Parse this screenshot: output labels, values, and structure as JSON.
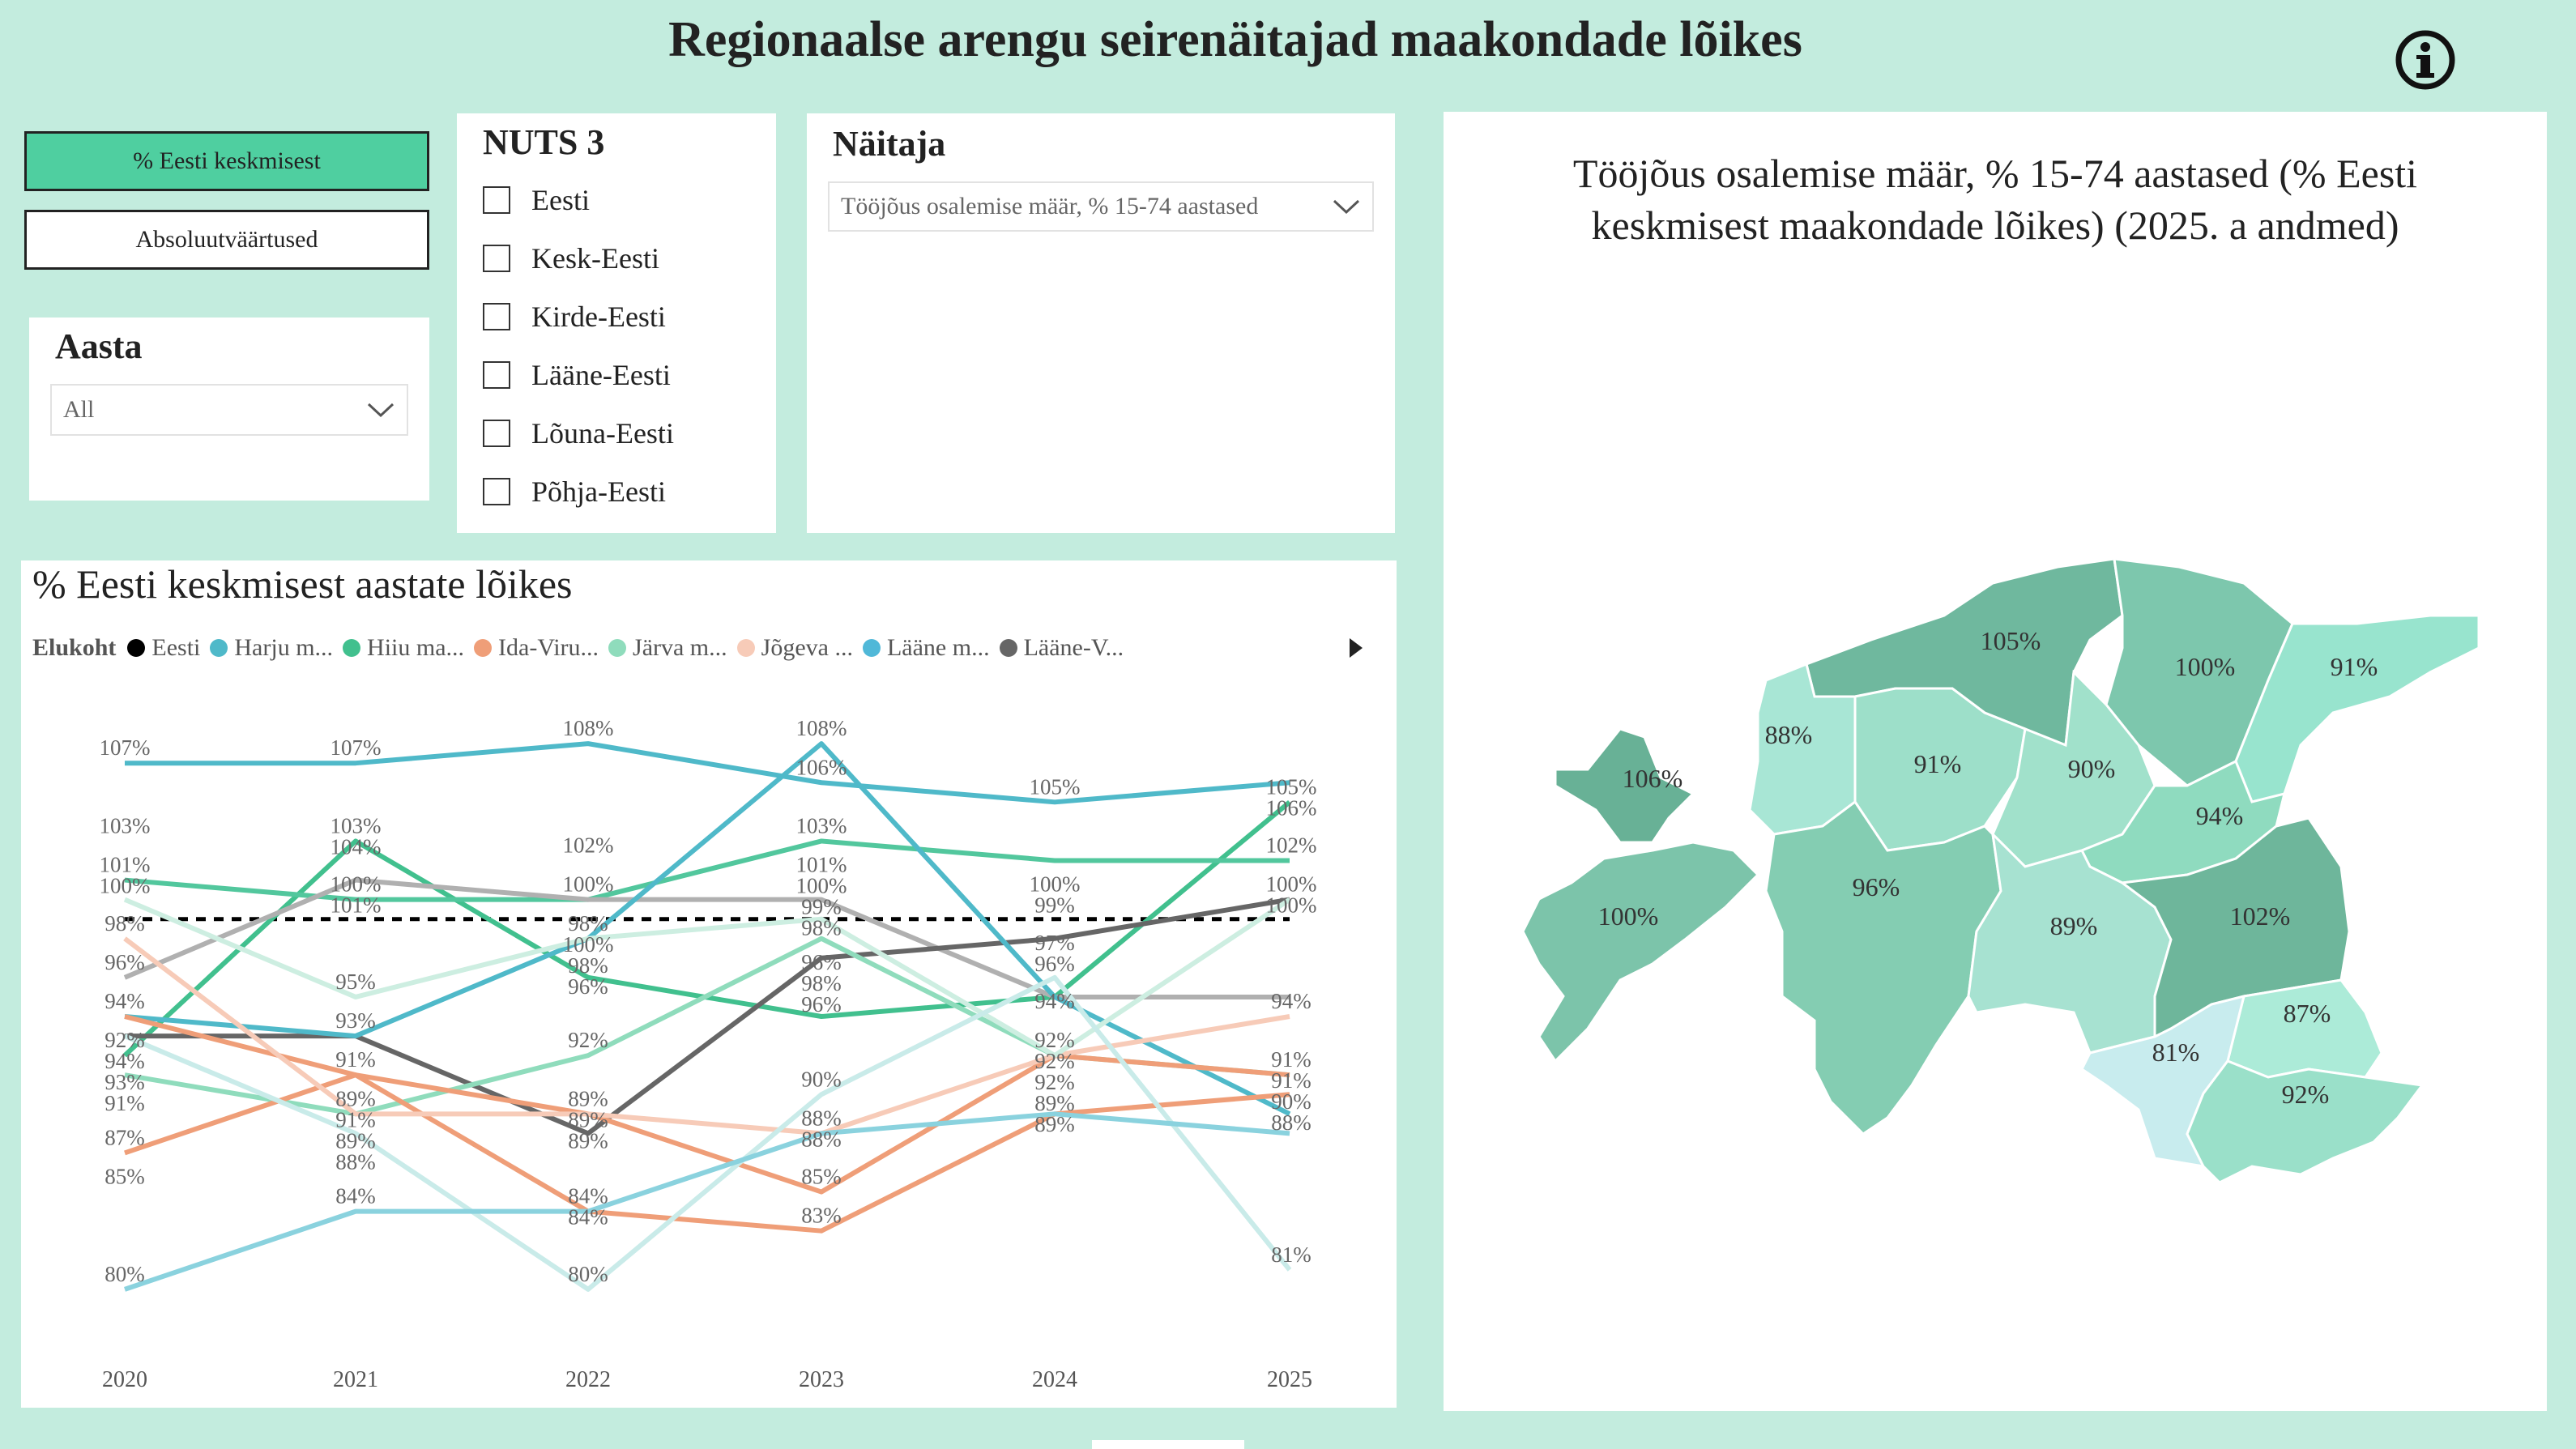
{
  "header": {
    "title": "Regionaalse arengu seirenäitajad maakondade lõikes",
    "info_icon": "info-circle-icon"
  },
  "mode_buttons": [
    {
      "label": "% Eesti keskmisest",
      "active": true
    },
    {
      "label": "Absoluutväärtused",
      "active": false
    }
  ],
  "year_filter": {
    "label": "Aasta",
    "value": "All"
  },
  "nuts3": {
    "label": "NUTS 3",
    "items": [
      "Eesti",
      "Kesk-Eesti",
      "Kirde-Eesti",
      "Lääne-Eesti",
      "Lõuna-Eesti",
      "Põhja-Eesti"
    ]
  },
  "indicator": {
    "label": "Näitaja",
    "value": "Tööjõus osalemise määr, % 15-74 aastased"
  },
  "line_chart": {
    "title": "% Eesti keskmisest aastate lõikes",
    "legend_title": "Elukoht",
    "legend": [
      {
        "label": "Eesti",
        "color": "#000000"
      },
      {
        "label": "Harju m...",
        "color": "#4fb9c9"
      },
      {
        "label": "Hiiu ma...",
        "color": "#41c08e"
      },
      {
        "label": "Ida-Viru...",
        "color": "#ef9e78"
      },
      {
        "label": "Järva m...",
        "color": "#8fdcbc"
      },
      {
        "label": "Jõgeva ...",
        "color": "#f7cbb8"
      },
      {
        "label": "Lääne m...",
        "color": "#50b8d8"
      },
      {
        "label": "Lääne-V...",
        "color": "#666666"
      }
    ],
    "legend_next_icon": "caret-right-icon"
  },
  "chart_data": {
    "type": "line",
    "x": [
      "2020",
      "2021",
      "2022",
      "2023",
      "2024",
      "2025"
    ],
    "ylim": [
      78,
      110
    ],
    "reference_line": 99,
    "series": [
      {
        "color": "#4fb9c9",
        "values": [
          107,
          107,
          108,
          106,
          105,
          106
        ]
      },
      {
        "color": "#41c08e",
        "values": [
          92,
          103,
          96,
          94,
          95,
          105
        ]
      },
      {
        "color": "#52c79d",
        "values": [
          101,
          100,
          100,
          103,
          102,
          102
        ]
      },
      {
        "color": "#b0b0b0",
        "values": [
          96,
          101,
          100,
          100,
          95,
          95
        ]
      },
      {
        "color": "#666666",
        "values": [
          93,
          93,
          88,
          97,
          98,
          100
        ]
      },
      {
        "color": "#4fb9c9",
        "values": [
          94,
          93,
          98,
          108,
          95,
          89
        ]
      },
      {
        "color": "#8fdcbc",
        "values": [
          91,
          89,
          92,
          98,
          92,
          91
        ]
      },
      {
        "color": "#ef9e78",
        "values": [
          87,
          91,
          89,
          85,
          92,
          91
        ]
      },
      {
        "color": "#ef9e78",
        "values": [
          94,
          91,
          84,
          83,
          89,
          90
        ]
      },
      {
        "color": "#f7cbb8",
        "values": [
          98,
          89,
          89,
          88,
          92,
          94
        ]
      },
      {
        "color": "#cdeee1",
        "values": [
          100,
          95,
          98,
          99,
          92,
          100
        ]
      },
      {
        "color": "#c9ebe9",
        "values": [
          93,
          88,
          80,
          90,
          96,
          81
        ]
      },
      {
        "color": "#8ad2de",
        "values": [
          80,
          84,
          84,
          88,
          89,
          88
        ]
      }
    ],
    "labels": [
      [
        "107%",
        "103%",
        "101%",
        "100%",
        "98%",
        "96%",
        "94%",
        "92%",
        "94%",
        "93%",
        "91%",
        "87%",
        "85%",
        "80%"
      ],
      [
        "107%",
        "103%",
        "104%",
        "100%",
        "101%",
        "95%",
        "93%",
        "91%",
        "89%",
        "91%",
        "89%",
        "88%",
        "84%"
      ],
      [
        "108%",
        "102%",
        "100%",
        "98%",
        "100%",
        "98%",
        "96%",
        "92%",
        "89%",
        "89%",
        "89%",
        "84%",
        "84%",
        "80%"
      ],
      [
        "108%",
        "106%",
        "103%",
        "101%",
        "100%",
        "99%",
        "98%",
        "96%",
        "98%",
        "96%",
        "90%",
        "88%",
        "88%",
        "85%",
        "83%"
      ],
      [
        "105%",
        "100%",
        "99%",
        "97%",
        "96%",
        "94%",
        "92%",
        "92%",
        "92%",
        "89%",
        "89%"
      ],
      [
        "105%",
        "106%",
        "102%",
        "100%",
        "100%",
        "94%",
        "91%",
        "91%",
        "90%",
        "88%",
        "81%"
      ]
    ]
  },
  "map": {
    "title_line1": "Tööjõus osalemise määr, % 15-74 aastased (% Eesti",
    "title_line2": "keskmisest maakondade lõikes) (2025. a andmed)",
    "regions": [
      {
        "label": "105%",
        "color": "#6fb89e"
      },
      {
        "label": "100%",
        "color": "#7dc7ad"
      },
      {
        "label": "91%",
        "color": "#98e4ce"
      },
      {
        "label": "88%",
        "color": "#a8e6d5"
      },
      {
        "label": "91%",
        "color": "#9ddfc9"
      },
      {
        "label": "90%",
        "color": "#a1e1cb"
      },
      {
        "label": "106%",
        "color": "#68b196"
      },
      {
        "label": "94%",
        "color": "#8fdbbf"
      },
      {
        "label": "100%",
        "color": "#7cc4aa"
      },
      {
        "label": "96%",
        "color": "#84cdb2"
      },
      {
        "label": "89%",
        "color": "#a7e2d1"
      },
      {
        "label": "102%",
        "color": "#6eb69b"
      },
      {
        "label": "87%",
        "color": "#acebd8"
      },
      {
        "label": "81%",
        "color": "#c8ecee"
      },
      {
        "label": "92%",
        "color": "#9ae0c9"
      }
    ]
  }
}
